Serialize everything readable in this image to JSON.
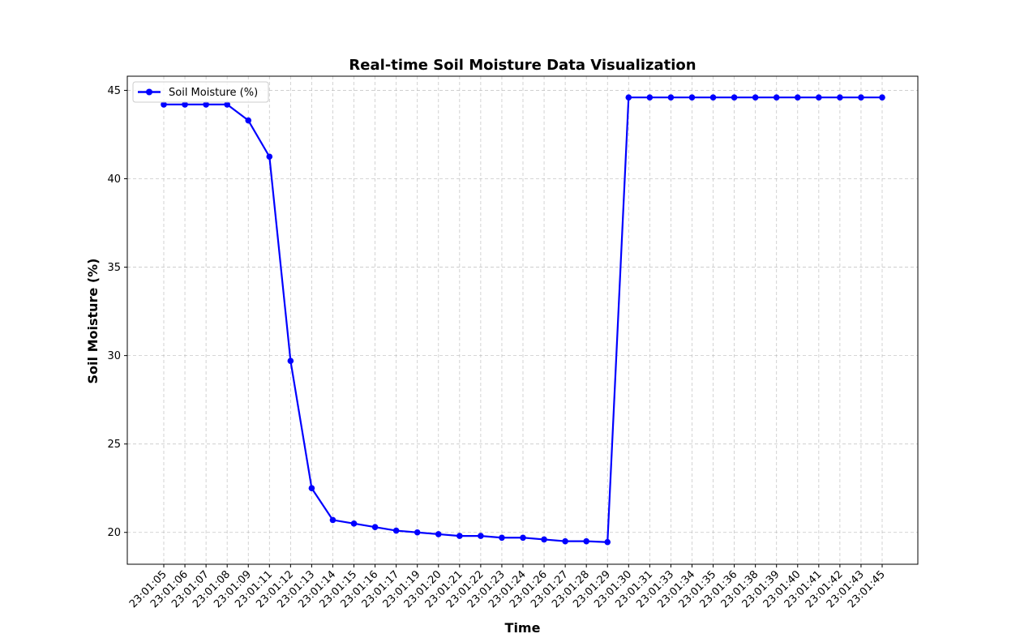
{
  "chart_data": {
    "type": "line",
    "title": "Real-time Soil Moisture Data Visualization",
    "xlabel": "Time",
    "ylabel": "Soil Moisture (%)",
    "ylim": [
      18.2,
      45.8
    ],
    "yticks": [
      20,
      25,
      30,
      35,
      40,
      45
    ],
    "grid": true,
    "legend_position": "top-left",
    "categories": [
      "23:01:05",
      "23:01:06",
      "23:01:07",
      "23:01:08",
      "23:01:09",
      "23:01:11",
      "23:01:12",
      "23:01:13",
      "23:01:14",
      "23:01:15",
      "23:01:16",
      "23:01:17",
      "23:01:19",
      "23:01:20",
      "23:01:21",
      "23:01:22",
      "23:01:23",
      "23:01:24",
      "23:01:26",
      "23:01:27",
      "23:01:28",
      "23:01:29",
      "23:01:30",
      "23:01:31",
      "23:01:33",
      "23:01:34",
      "23:01:35",
      "23:01:36",
      "23:01:38",
      "23:01:39",
      "23:01:40",
      "23:01:41",
      "23:01:42",
      "23:01:43",
      "23:01:45"
    ],
    "series": [
      {
        "name": "Soil Moisture (%)",
        "color": "#0000ff",
        "values": [
          44.2,
          44.2,
          44.2,
          44.2,
          43.3,
          41.25,
          29.7,
          22.5,
          20.7,
          20.5,
          20.3,
          20.1,
          20.0,
          19.9,
          19.8,
          19.8,
          19.7,
          19.7,
          19.6,
          19.5,
          19.5,
          19.45,
          44.6,
          44.6,
          44.6,
          44.6,
          44.6,
          44.6,
          44.6,
          44.6,
          44.6,
          44.6,
          44.6,
          44.6,
          44.6
        ]
      }
    ]
  }
}
